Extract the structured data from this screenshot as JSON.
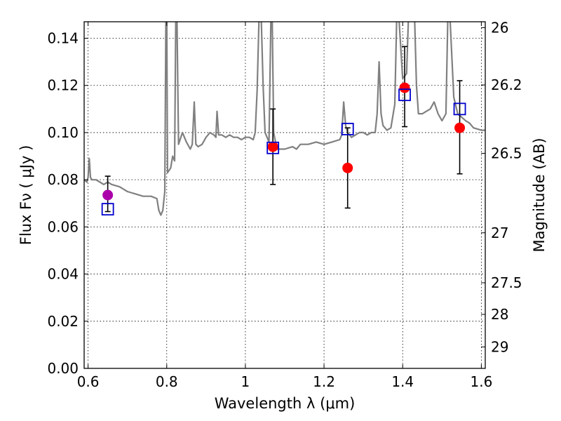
{
  "chart_data": {
    "type": "scatter",
    "xlabel": "Wavelength  λ (μm)",
    "ylabel": "Flux  Fν  ( μJy )",
    "y2label": "Magnitude (AB)",
    "xlim": [
      0.59,
      1.61
    ],
    "ylim": [
      0.0,
      0.147
    ],
    "grid": true,
    "x_ticks": [
      {
        "value": 0.6,
        "label": "0.6"
      },
      {
        "value": 0.8,
        "label": "0.8"
      },
      {
        "value": 1.0,
        "label": "1"
      },
      {
        "value": 1.2,
        "label": "1.2"
      },
      {
        "value": 1.4,
        "label": "1.4"
      },
      {
        "value": 1.6,
        "label": "1.6"
      }
    ],
    "y_ticks": [
      {
        "value": 0.0,
        "label": "0.00"
      },
      {
        "value": 0.02,
        "label": "0.02"
      },
      {
        "value": 0.04,
        "label": "0.04"
      },
      {
        "value": 0.06,
        "label": "0.06"
      },
      {
        "value": 0.08,
        "label": "0.08"
      },
      {
        "value": 0.1,
        "label": "0.10"
      },
      {
        "value": 0.12,
        "label": "0.12"
      },
      {
        "value": 0.14,
        "label": "0.14"
      }
    ],
    "y2_ticks": [
      {
        "flux": 0.1445,
        "label": "26"
      },
      {
        "flux": 0.1202,
        "label": "26.2"
      },
      {
        "flux": 0.0912,
        "label": "26.5"
      },
      {
        "flux": 0.0575,
        "label": "27"
      },
      {
        "flux": 0.0363,
        "label": "27.5"
      },
      {
        "flux": 0.0229,
        "label": "28"
      },
      {
        "flux": 0.0091,
        "label": "29"
      }
    ],
    "series": [
      {
        "kind": "line",
        "color": "#808080",
        "points": [
          [
            0.59,
            0.08
          ],
          [
            0.597,
            0.079
          ],
          [
            0.6,
            0.081
          ],
          [
            0.603,
            0.089
          ],
          [
            0.606,
            0.081
          ],
          [
            0.61,
            0.08
          ],
          [
            0.62,
            0.08
          ],
          [
            0.63,
            0.079
          ],
          [
            0.64,
            0.078
          ],
          [
            0.65,
            0.079
          ],
          [
            0.66,
            0.078
          ],
          [
            0.68,
            0.077
          ],
          [
            0.69,
            0.076
          ],
          [
            0.7,
            0.075
          ],
          [
            0.72,
            0.074
          ],
          [
            0.74,
            0.073
          ],
          [
            0.76,
            0.073
          ],
          [
            0.775,
            0.072
          ],
          [
            0.78,
            0.067
          ],
          [
            0.785,
            0.065
          ],
          [
            0.79,
            0.067
          ],
          [
            0.795,
            0.075
          ],
          [
            0.798,
            0.15
          ],
          [
            0.8,
            0.15
          ],
          [
            0.802,
            0.083
          ],
          [
            0.81,
            0.085
          ],
          [
            0.815,
            0.09
          ],
          [
            0.82,
            0.088
          ],
          [
            0.823,
            0.15
          ],
          [
            0.826,
            0.15
          ],
          [
            0.83,
            0.095
          ],
          [
            0.84,
            0.1
          ],
          [
            0.85,
            0.096
          ],
          [
            0.86,
            0.093
          ],
          [
            0.865,
            0.095
          ],
          [
            0.87,
            0.113
          ],
          [
            0.874,
            0.095
          ],
          [
            0.88,
            0.094
          ],
          [
            0.89,
            0.095
          ],
          [
            0.9,
            0.098
          ],
          [
            0.91,
            0.1
          ],
          [
            0.92,
            0.099
          ],
          [
            0.925,
            0.098
          ],
          [
            0.928,
            0.109
          ],
          [
            0.932,
            0.099
          ],
          [
            0.94,
            0.099
          ],
          [
            0.95,
            0.098
          ],
          [
            0.96,
            0.099
          ],
          [
            0.97,
            0.098
          ],
          [
            0.98,
            0.098
          ],
          [
            0.99,
            0.097
          ],
          [
            1.0,
            0.098
          ],
          [
            1.01,
            0.098
          ],
          [
            1.02,
            0.097
          ],
          [
            1.025,
            0.1
          ],
          [
            1.03,
            0.118
          ],
          [
            1.035,
            0.15
          ],
          [
            1.04,
            0.15
          ],
          [
            1.045,
            0.12
          ],
          [
            1.05,
            0.1
          ],
          [
            1.06,
            0.096
          ],
          [
            1.065,
            0.15
          ],
          [
            1.068,
            0.15
          ],
          [
            1.072,
            0.1
          ],
          [
            1.08,
            0.093
          ],
          [
            1.1,
            0.093
          ],
          [
            1.12,
            0.094
          ],
          [
            1.13,
            0.093
          ],
          [
            1.14,
            0.095
          ],
          [
            1.16,
            0.095
          ],
          [
            1.18,
            0.096
          ],
          [
            1.2,
            0.095
          ],
          [
            1.22,
            0.096
          ],
          [
            1.24,
            0.097
          ],
          [
            1.245,
            0.099
          ],
          [
            1.25,
            0.113
          ],
          [
            1.255,
            0.103
          ],
          [
            1.26,
            0.1
          ],
          [
            1.27,
            0.098
          ],
          [
            1.28,
            0.099
          ],
          [
            1.29,
            0.1
          ],
          [
            1.3,
            0.1
          ],
          [
            1.31,
            0.099
          ],
          [
            1.32,
            0.1
          ],
          [
            1.33,
            0.1
          ],
          [
            1.335,
            0.108
          ],
          [
            1.34,
            0.13
          ],
          [
            1.345,
            0.108
          ],
          [
            1.35,
            0.103
          ],
          [
            1.36,
            0.101
          ],
          [
            1.37,
            0.102
          ],
          [
            1.38,
            0.112
          ],
          [
            1.385,
            0.15
          ],
          [
            1.39,
            0.15
          ],
          [
            1.4,
            0.123
          ],
          [
            1.41,
            0.125
          ],
          [
            1.415,
            0.15
          ],
          [
            1.43,
            0.15
          ],
          [
            1.435,
            0.12
          ],
          [
            1.44,
            0.108
          ],
          [
            1.45,
            0.108
          ],
          [
            1.47,
            0.11
          ],
          [
            1.48,
            0.113
          ],
          [
            1.49,
            0.108
          ],
          [
            1.5,
            0.105
          ],
          [
            1.51,
            0.108
          ],
          [
            1.515,
            0.15
          ],
          [
            1.52,
            0.15
          ],
          [
            1.53,
            0.115
          ],
          [
            1.54,
            0.108
          ],
          [
            1.56,
            0.105
          ],
          [
            1.57,
            0.104
          ],
          [
            1.58,
            0.102
          ],
          [
            1.6,
            0.101
          ],
          [
            1.61,
            0.101
          ]
        ]
      },
      {
        "kind": "points-circle",
        "points": [
          {
            "x": 0.65,
            "y": 0.0735,
            "color": "#aa00aa",
            "yerr_low": 0.0665,
            "yerr_high": 0.0815
          },
          {
            "x": 1.07,
            "y": 0.094,
            "color": "#ff0000",
            "yerr_low": 0.078,
            "yerr_high": 0.11
          },
          {
            "x": 1.26,
            "y": 0.085,
            "color": "#ff0000",
            "yerr_low": 0.068,
            "yerr_high": 0.102
          },
          {
            "x": 1.405,
            "y": 0.119,
            "color": "#ff0000",
            "yerr_low": 0.1025,
            "yerr_high": 0.1365
          },
          {
            "x": 1.545,
            "y": 0.102,
            "color": "#ff0000",
            "yerr_low": 0.0825,
            "yerr_high": 0.122
          }
        ]
      },
      {
        "kind": "points-square",
        "color": "#0000cc",
        "points": [
          {
            "x": 0.65,
            "y": 0.0675
          },
          {
            "x": 1.07,
            "y": 0.0935
          },
          {
            "x": 1.26,
            "y": 0.1015
          },
          {
            "x": 1.405,
            "y": 0.116
          },
          {
            "x": 1.545,
            "y": 0.11
          }
        ]
      }
    ]
  }
}
